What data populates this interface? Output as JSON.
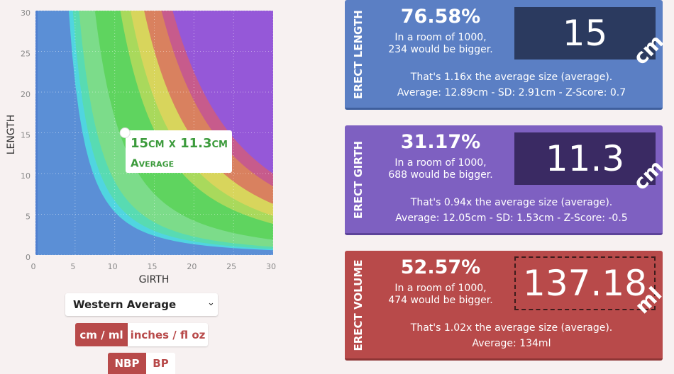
{
  "chart_data": {
    "type": "scatter",
    "xlabel": "GIRTH",
    "ylabel": "LENGTH",
    "xlim": [
      0,
      30
    ],
    "ylim": [
      0,
      30
    ],
    "xticks": [
      0,
      5,
      10,
      15,
      20,
      25,
      30
    ],
    "yticks": [
      0,
      5,
      10,
      15,
      20,
      25,
      30
    ],
    "x": [
      11.3
    ],
    "values": [
      15
    ],
    "color": "#ffffff",
    "grid": true,
    "annotation": {
      "title": "15cm x 11.3cm",
      "label": "Average"
    }
  },
  "controls": {
    "dataset": "Western Average",
    "units": [
      "cm / ml",
      "inches / fl oz"
    ],
    "mode": [
      "NBP",
      "BP"
    ]
  },
  "cards": [
    {
      "label": "ERECT LENGTH",
      "percent": "76.58%",
      "room": [
        "In a room of 1000,",
        "234 would be bigger."
      ],
      "value": "15",
      "unit": "cm",
      "ratio": "That's 1.16x the average size (average).",
      "stats": "Average: 12.89cm - SD: 2.91cm - Z-Score: 0.7"
    },
    {
      "label": "ERECT GIRTH",
      "percent": "31.17%",
      "room": [
        "In a room of 1000,",
        "688 would be bigger."
      ],
      "value": "11.3",
      "unit": "cm",
      "ratio": "That's 0.94x the average size (average).",
      "stats": "Average: 12.05cm - SD: 1.53cm - Z-Score: -0.5"
    },
    {
      "label": "ERECT VOLUME",
      "percent": "52.57%",
      "room": [
        "In a room of 1000,",
        "474 would be bigger."
      ],
      "value": "137.18",
      "unit": "ml",
      "ratio": "That's 1.02x the average size (average).",
      "stats": "Average: 134ml"
    }
  ]
}
